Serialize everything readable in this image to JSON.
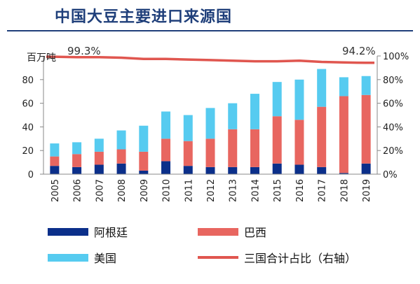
{
  "header": {
    "title": "中国大豆主要进口来源国"
  },
  "colors": {
    "title": "#1f3f7a",
    "argentina": "#0b2f8a",
    "brazil": "#e86660",
    "usa": "#56cbf0",
    "share_line": "#e0564f"
  },
  "chart_data": {
    "type": "bar",
    "stacked": true,
    "categories": [
      "2005",
      "2006",
      "2007",
      "2008",
      "2009",
      "2010",
      "2011",
      "2012",
      "2013",
      "2014",
      "2015",
      "2016",
      "2017",
      "2018",
      "2019"
    ],
    "series": [
      {
        "name": "阿根廷",
        "values": [
          7,
          6,
          8,
          9,
          3,
          11,
          7,
          6,
          6,
          6,
          9,
          8,
          6,
          1,
          9
        ]
      },
      {
        "name": "巴西",
        "values": [
          8,
          11,
          11,
          12,
          16,
          19,
          21,
          24,
          32,
          32,
          40,
          38,
          51,
          65,
          58
        ]
      },
      {
        "name": "美国",
        "values": [
          11,
          10,
          11,
          16,
          22,
          23,
          22,
          26,
          22,
          30,
          29,
          34,
          32,
          16,
          16
        ]
      }
    ],
    "line_series": {
      "name": "三国合计占比（右轴）",
      "axis": "right",
      "values": [
        0.993,
        0.99,
        0.99,
        0.985,
        0.975,
        0.975,
        0.97,
        0.965,
        0.96,
        0.955,
        0.955,
        0.96,
        0.95,
        0.945,
        0.942
      ]
    },
    "annotations": [
      "99.3%",
      "94.2%"
    ],
    "ylabel": "百万吨",
    "ylim": [
      0,
      100
    ],
    "yticks": [
      0,
      20,
      40,
      60,
      80
    ],
    "y2lim": [
      0,
      1
    ],
    "y2ticks": [
      "0%",
      "20%",
      "40%",
      "60%",
      "80%",
      "100%"
    ],
    "grid": false,
    "legend_position": "bottom"
  },
  "legend": {
    "argentina": "阿根廷",
    "brazil": "巴西",
    "usa": "美国",
    "share": "三国合计占比（右轴）"
  }
}
